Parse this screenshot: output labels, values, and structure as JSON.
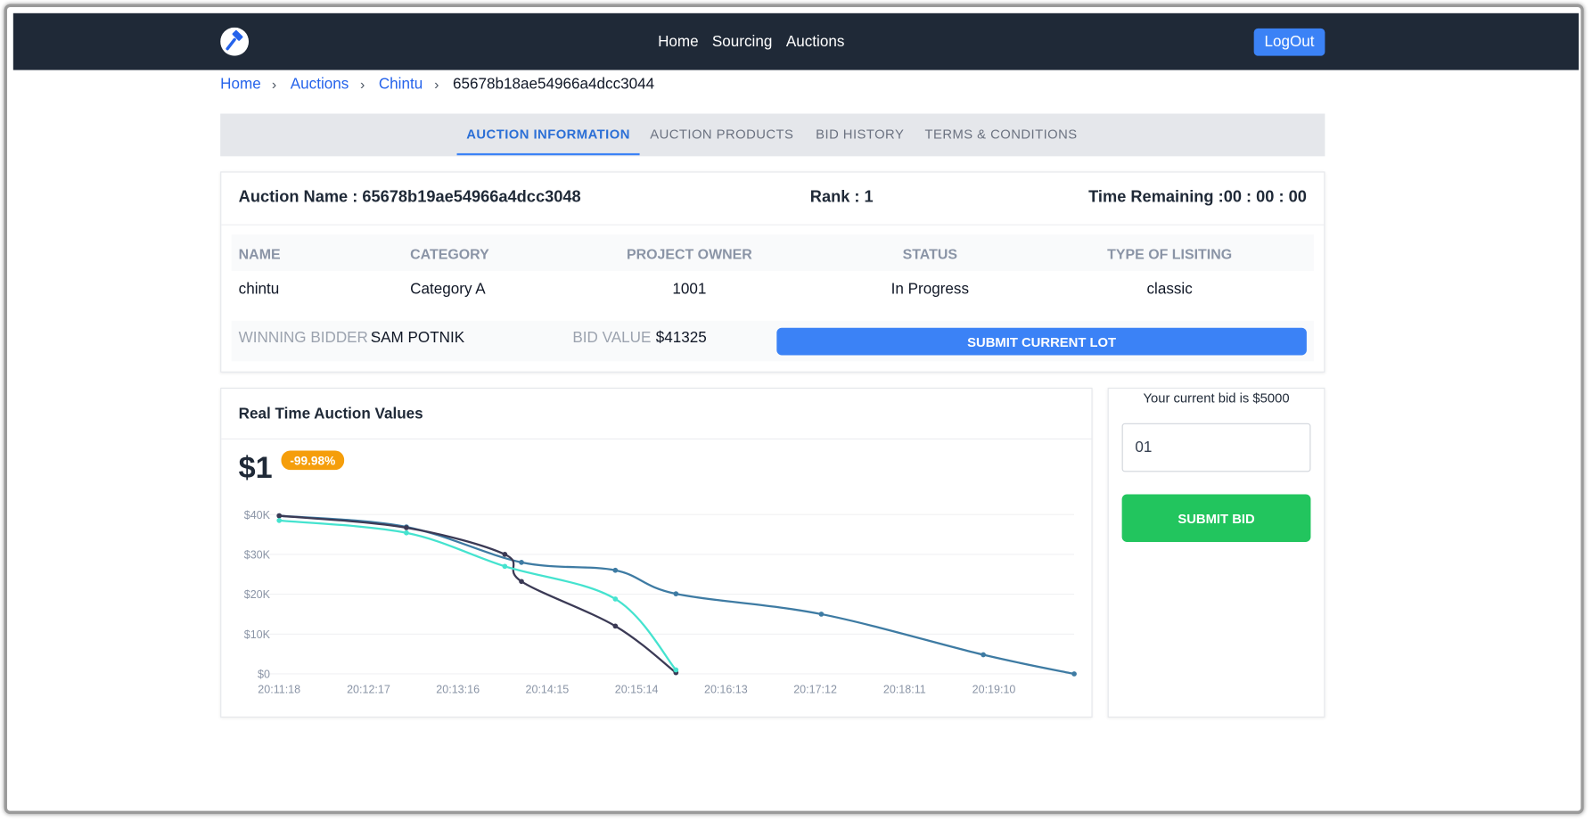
{
  "nav": {
    "links": [
      "Home",
      "Sourcing",
      "Auctions"
    ],
    "logout": "LogOut"
  },
  "breadcrumb": [
    "Home",
    "Auctions",
    "Chintu",
    "65678b18ae54966a4dcc3044"
  ],
  "tabs": [
    "AUCTION INFORMATION",
    "AUCTION PRODUCTS",
    "BID HISTORY",
    "TERMS & CONDITIONS"
  ],
  "auction": {
    "name": "Auction Name : 65678b19ae54966a4dcc3048",
    "rank": "Rank : 1",
    "time_remaining": "Time Remaining :00 : 00 : 00",
    "table": {
      "headers": [
        "NAME",
        "CATEGORY",
        "PROJECT OWNER",
        "STATUS",
        "TYPE OF LISITING"
      ],
      "row": [
        "chintu",
        "Category A",
        "1001",
        "In Progress",
        "classic"
      ]
    },
    "winning_bidder_label": "WINNING BIDDER :",
    "winning_bidder": "SAM POTNIK",
    "bid_value_label": "BID VALUE :",
    "bid_value": "$41325",
    "submit_lot": "SUBMIT CURRENT LOT"
  },
  "bid_panel": {
    "current_bid": "Your current bid is $5000",
    "input_value": "01",
    "submit": "SUBMIT BID"
  },
  "chart_data": {
    "type": "line",
    "title": "Real Time Auction Values",
    "current_value": "$1",
    "change": "-99.98%",
    "xlim": [
      "20:11:18",
      "20:20:03"
    ],
    "xticks": [
      "20:11:18",
      "20:12:17",
      "20:13:16",
      "20:14:15",
      "20:15:14",
      "20:16:13",
      "20:17:12",
      "20:18:11",
      "20:19:10"
    ],
    "ylim": [
      0,
      40000
    ],
    "yticks": [
      {
        "value": 0,
        "label": "$0"
      },
      {
        "value": 10000,
        "label": "$10K"
      },
      {
        "value": 20000,
        "label": "$20K"
      },
      {
        "value": 30000,
        "label": "$30K"
      },
      {
        "value": 40000,
        "label": "$40K"
      }
    ],
    "grid": true,
    "series": [
      {
        "color": "#3e7ba3",
        "x": [
          "20:11:18",
          "20:12:42",
          "20:13:58",
          "20:15:00",
          "20:15:40",
          "20:17:16",
          "20:19:03",
          "20:20:03"
        ],
        "values": [
          39700,
          36900,
          28000,
          26000,
          20100,
          15000,
          4800,
          0
        ]
      },
      {
        "color": "#3b3a55",
        "x": [
          "20:11:18",
          "20:12:42",
          "20:13:47",
          "20:13:58",
          "20:15:00",
          "20:15:40"
        ],
        "values": [
          39700,
          36700,
          30000,
          23200,
          12000,
          300
        ]
      },
      {
        "color": "#45e3cf",
        "x": [
          "20:11:18",
          "20:12:42",
          "20:13:47",
          "20:15:00",
          "20:15:40"
        ],
        "values": [
          38500,
          35400,
          27000,
          18800,
          1000
        ]
      }
    ]
  }
}
